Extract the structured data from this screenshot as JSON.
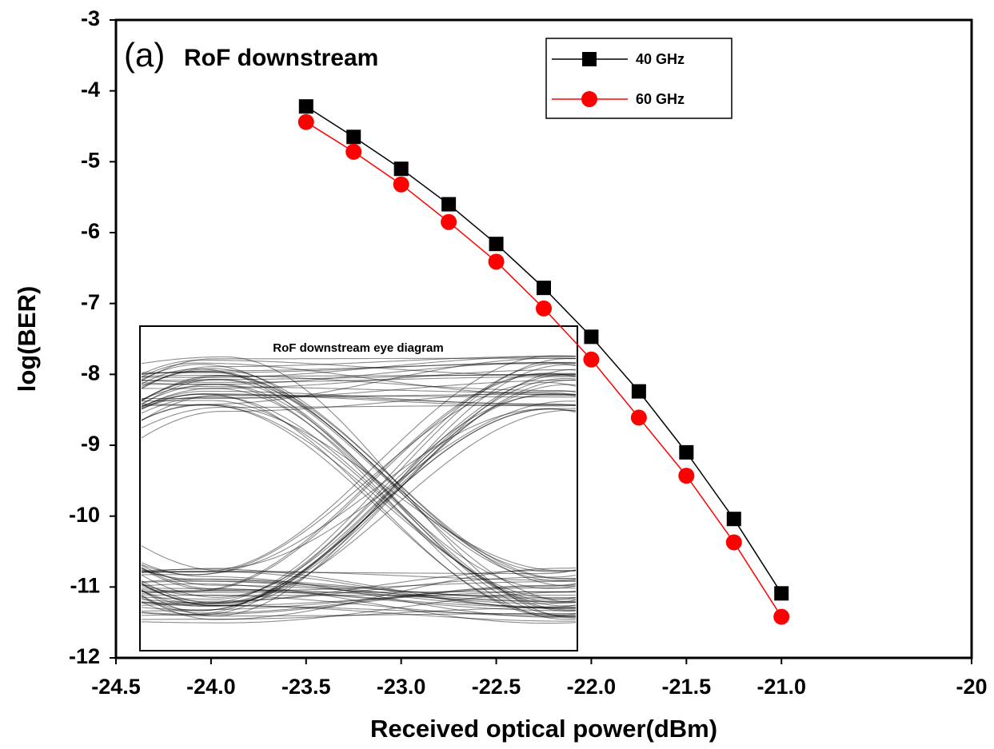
{
  "chart_data": {
    "type": "line",
    "panel_label": "(a)",
    "title": "RoF downstream",
    "inset_title": "RoF downstream eye diagram",
    "x_label": "Received optical power(dBm)",
    "y_label": "log(BER)",
    "x": [
      -23.5,
      -23.25,
      -23.0,
      -22.75,
      -22.5,
      -22.25,
      -22.0,
      -21.75,
      -21.5,
      -21.25,
      -21.0
    ],
    "series": [
      {
        "name": "40 GHz",
        "color": "#000000",
        "marker": "square",
        "values": [
          -4.22,
          -4.65,
          -5.1,
          -5.6,
          -6.16,
          -6.78,
          -7.47,
          -8.24,
          -9.1,
          -10.04,
          -11.09
        ]
      },
      {
        "name": "60 GHz",
        "color": "#ff0000",
        "marker": "circle",
        "values": [
          -4.44,
          -4.86,
          -5.32,
          -5.85,
          -6.41,
          -7.07,
          -7.79,
          -8.61,
          -9.43,
          -10.37,
          -11.42
        ]
      }
    ],
    "xlim": [
      -24.5,
      -20
    ],
    "xticks": [
      -24.5,
      {
        "value": -24,
        "label": "-24.0"
      },
      -23.5,
      {
        "value": -23,
        "label": "-23.0"
      },
      -22.5,
      {
        "value": -22,
        "label": "-22.0"
      },
      -21.5,
      {
        "value": -21,
        "label": "-21.0"
      },
      -20
    ],
    "ylim": [
      -12,
      -3
    ],
    "yticks": [
      -3,
      -4,
      -5,
      -6,
      -7,
      -8,
      -9,
      -10,
      -11,
      -12
    ],
    "legend": "top-right"
  }
}
